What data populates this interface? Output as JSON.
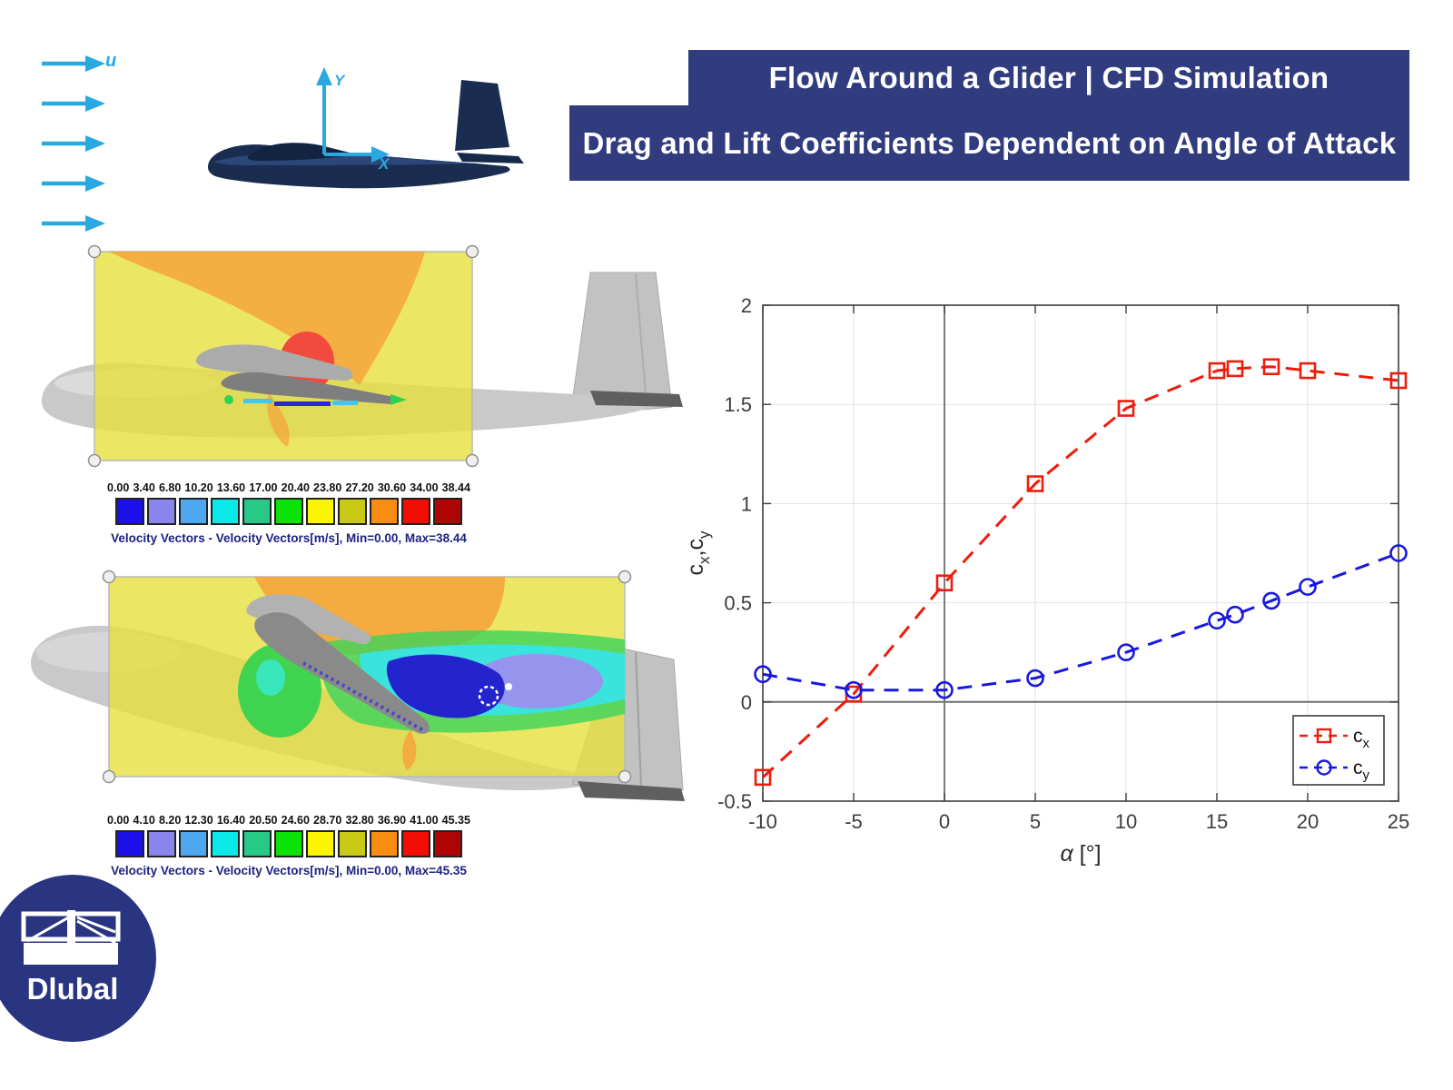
{
  "inflow": {
    "label": "u"
  },
  "schematic": {
    "x_axis_label": "X",
    "y_axis_label": "Y"
  },
  "banner": {
    "line1": "Flow Around a Glider | CFD Simulation",
    "line2": "Drag and Lift Coefficients Dependent on Angle of Attack",
    "bg_color": "#303c7d",
    "text_color": "#ffffff"
  },
  "figures": [
    {
      "name": "velocity-field-low-aoa",
      "scale_values": [
        "0.00",
        "3.40",
        "6.80",
        "10.20",
        "13.60",
        "17.00",
        "20.40",
        "23.80",
        "27.20",
        "30.60",
        "34.00",
        "38.44"
      ],
      "scale_colors": [
        "#1b10e8",
        "#8a85ec",
        "#4da8f0",
        "#0ae8e8",
        "#28c987",
        "#0be206",
        "#fbf504",
        "#c9c917",
        "#f98d13",
        "#f20d05",
        "#b00505"
      ],
      "caption": "Velocity Vectors - Velocity Vectors[m/s], Min=0.00, Max=38.44"
    },
    {
      "name": "velocity-field-high-aoa",
      "scale_values": [
        "0.00",
        "4.10",
        "8.20",
        "12.30",
        "16.40",
        "20.50",
        "24.60",
        "28.70",
        "32.80",
        "36.90",
        "41.00",
        "45.35"
      ],
      "scale_colors": [
        "#1b10e8",
        "#8a85ec",
        "#4da8f0",
        "#0ae8e8",
        "#28c987",
        "#0be206",
        "#fbf504",
        "#c9c917",
        "#f98d13",
        "#f20d05",
        "#b00505"
      ],
      "caption": "Velocity Vectors - Velocity Vectors[m/s], Min=0.00, Max=45.35"
    }
  ],
  "chart_data": {
    "type": "line",
    "title": "",
    "xlabel": "α [°]",
    "ylabel": "cx,cy",
    "xlim": [
      -10,
      25
    ],
    "ylim": [
      -0.5,
      2
    ],
    "xticks": [
      -10,
      -5,
      0,
      5,
      10,
      15,
      20,
      25
    ],
    "yticks": [
      -0.5,
      0,
      0.5,
      1,
      1.5,
      2
    ],
    "grid": true,
    "legend_position": "bottom-right",
    "series": [
      {
        "name": "cx",
        "color": "#ee1c0c",
        "marker": "square",
        "line": "dashed",
        "x": [
          -10,
          -5,
          0,
          5,
          10,
          15,
          16,
          18,
          20,
          25
        ],
        "y": [
          -0.38,
          0.04,
          0.6,
          1.1,
          1.48,
          1.67,
          1.68,
          1.69,
          1.67,
          1.62
        ]
      },
      {
        "name": "cy",
        "color": "#1717e0",
        "marker": "circle",
        "line": "dashed",
        "x": [
          -10,
          -5,
          0,
          5,
          10,
          15,
          16,
          18,
          20,
          25
        ],
        "y": [
          0.14,
          0.06,
          0.06,
          0.12,
          0.25,
          0.41,
          0.44,
          0.51,
          0.58,
          0.75
        ]
      }
    ]
  },
  "logo": {
    "text": "Dlubal",
    "bg_color": "#293580"
  }
}
